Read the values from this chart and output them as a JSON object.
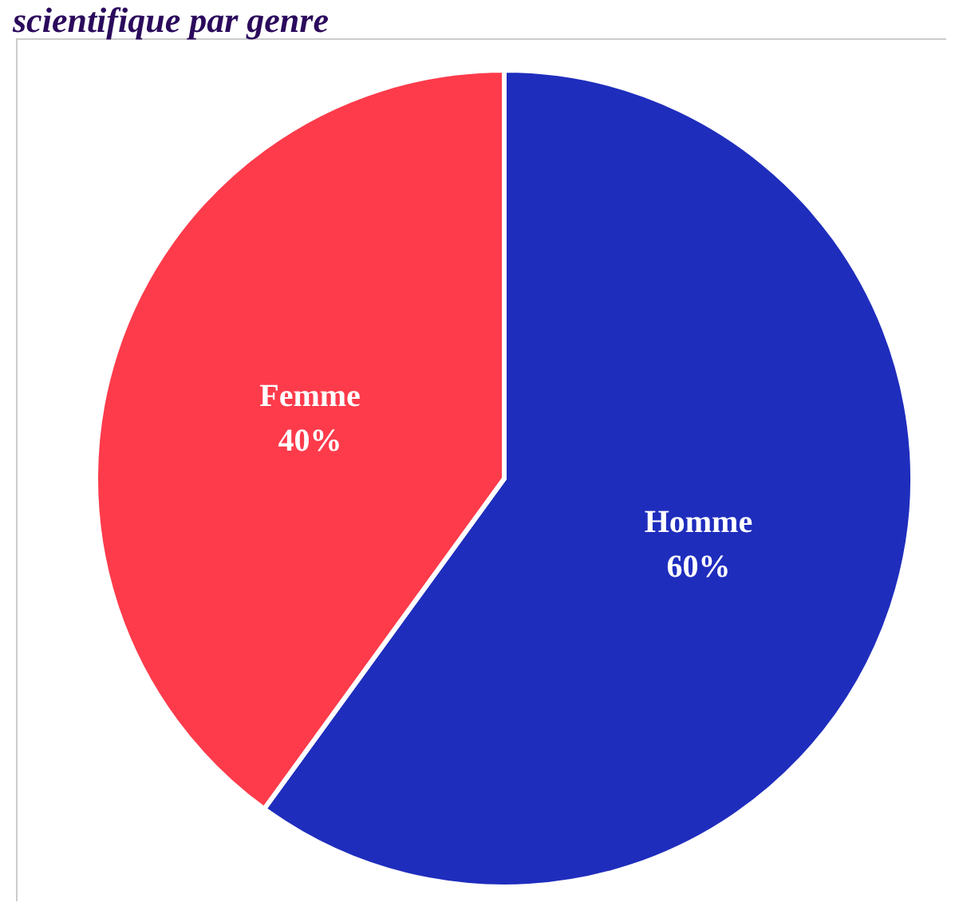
{
  "chart_data": {
    "type": "pie",
    "title": "scientifique par genre",
    "categories": [
      "Homme",
      "Femme"
    ],
    "values": [
      60,
      40
    ],
    "value_labels": [
      "60%",
      "40%"
    ],
    "colors": [
      "#1f2dbd",
      "#fd3b4b"
    ]
  }
}
